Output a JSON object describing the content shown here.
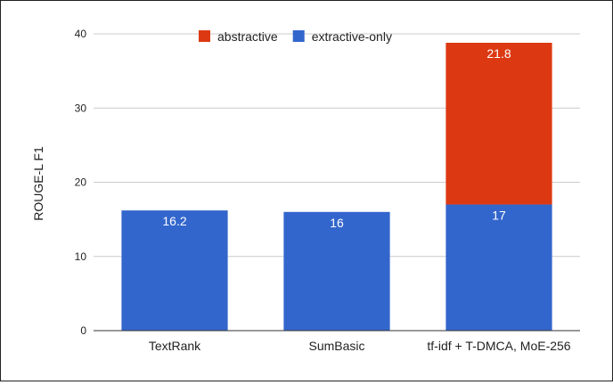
{
  "chart_data": {
    "type": "bar",
    "stacked": true,
    "title": "",
    "xlabel": "",
    "ylabel": "ROUGE-L F1",
    "ylim": [
      0,
      40
    ],
    "yticks": [
      0,
      10,
      20,
      30,
      40
    ],
    "grid": true,
    "legend_position": "top",
    "categories": [
      "TextRank",
      "SumBasic",
      "tf-idf + T-DMCA, MoE-256"
    ],
    "series": [
      {
        "name": "extractive-only",
        "color": "#3366cc",
        "values": [
          16.2,
          16,
          17
        ],
        "labels": [
          "16.2",
          "16",
          "17"
        ]
      },
      {
        "name": "abstractive",
        "color": "#dc3912",
        "values": [
          0,
          0,
          21.8
        ],
        "labels": [
          "",
          "",
          "21.8"
        ]
      }
    ],
    "legend": [
      {
        "name": "abstractive",
        "color": "#dc3912"
      },
      {
        "name": "extractive-only",
        "color": "#3366cc"
      }
    ]
  }
}
